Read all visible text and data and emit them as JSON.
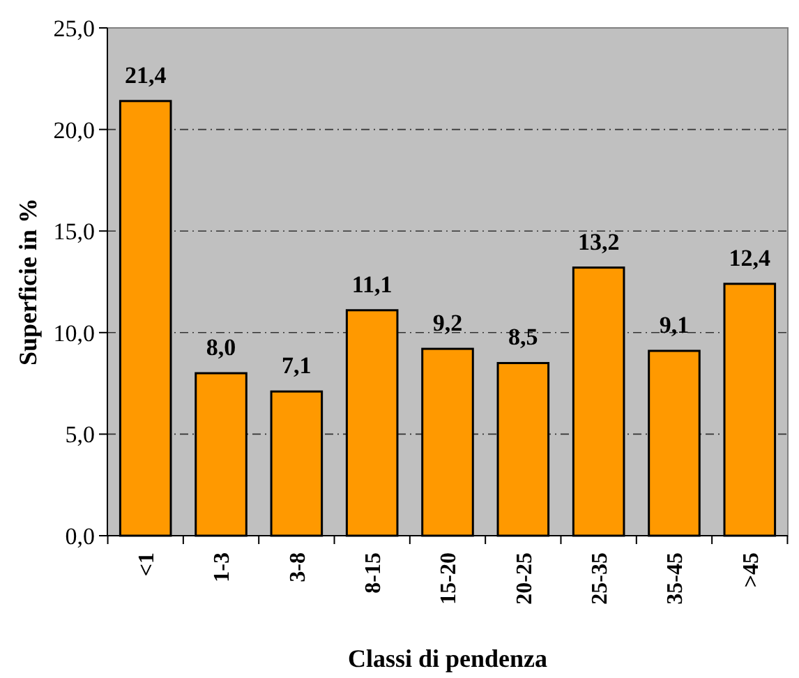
{
  "chart_data": {
    "type": "bar",
    "xlabel": "Classi di pendenza",
    "ylabel": "Superficie in %",
    "categories": [
      "<1",
      "1-3",
      "3-8",
      "8-15",
      "15-20",
      "20-25",
      "25-35",
      "35-45",
      ">45"
    ],
    "values": [
      21.4,
      8.0,
      7.1,
      11.1,
      9.2,
      8.5,
      13.2,
      9.1,
      12.4
    ],
    "value_labels": [
      "21,4",
      "8,0",
      "7,1",
      "11,1",
      "9,2",
      "8,5",
      "13,2",
      "9,1",
      "12,4"
    ],
    "color": "#ff9900",
    "ylim": [
      0,
      25
    ],
    "yticks": [
      {
        "value": 0,
        "label": "0,0"
      },
      {
        "value": 5,
        "label": "5,0"
      },
      {
        "value": 10,
        "label": "10,0"
      },
      {
        "value": 15,
        "label": "15,0"
      },
      {
        "value": 20,
        "label": "20,0"
      },
      {
        "value": 25,
        "label": "25,0"
      }
    ],
    "grid": "y"
  }
}
